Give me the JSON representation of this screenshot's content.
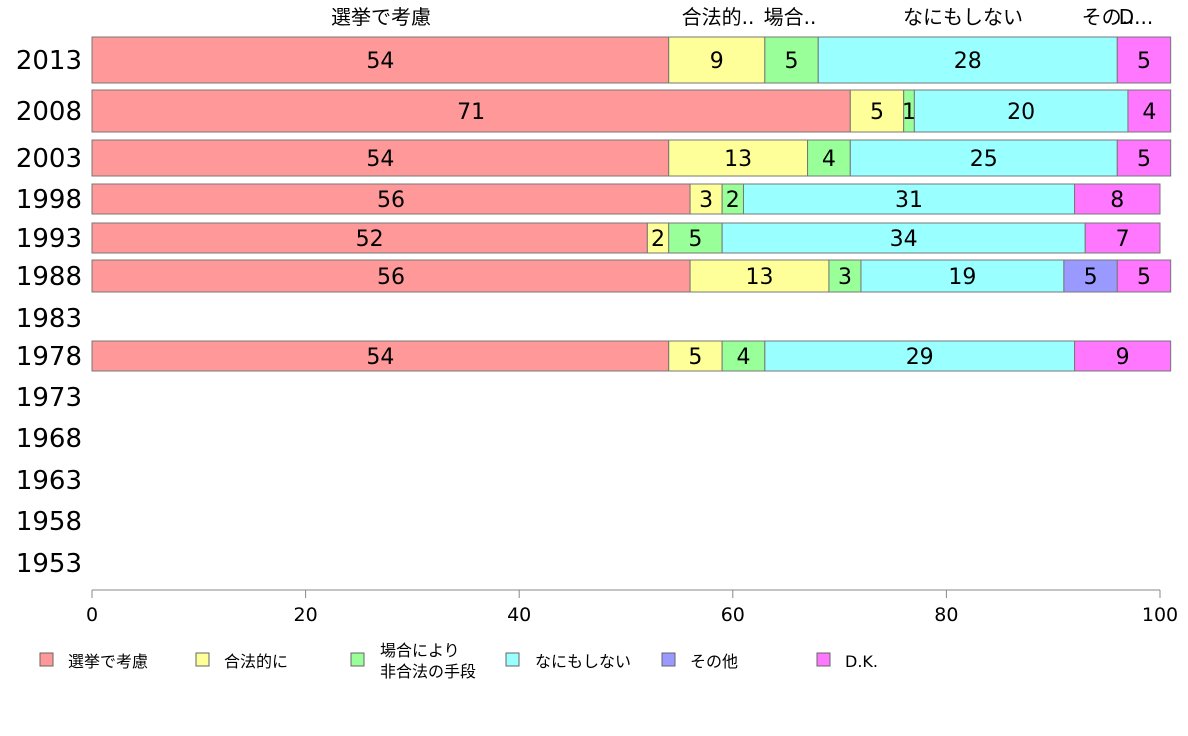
{
  "chart_data": {
    "type": "bar",
    "orientation": "horizontal",
    "stacked": true,
    "categories": [
      "2013",
      "2008",
      "2003",
      "1998",
      "1993",
      "1988",
      "1983",
      "1978",
      "1973",
      "1968",
      "1963",
      "1958",
      "1953"
    ],
    "series": [
      {
        "name": "選挙で考慮",
        "color": "#ff9999",
        "values": [
          54,
          71,
          54,
          56,
          52,
          56,
          null,
          54,
          null,
          null,
          null,
          null,
          null
        ]
      },
      {
        "name": "合法的に",
        "color": "#ffff99",
        "values": [
          9,
          5,
          13,
          3,
          2,
          13,
          null,
          5,
          null,
          null,
          null,
          null,
          null
        ]
      },
      {
        "name": "場合により 非合法の手段",
        "color": "#99ff99",
        "values": [
          5,
          1,
          4,
          2,
          5,
          3,
          null,
          4,
          null,
          null,
          null,
          null,
          null
        ]
      },
      {
        "name": "なにもしない",
        "color": "#99ffff",
        "values": [
          28,
          20,
          25,
          31,
          34,
          19,
          null,
          29,
          null,
          null,
          null,
          null,
          null
        ]
      },
      {
        "name": "その他",
        "color": "#9999ff",
        "values": [
          0,
          0,
          0,
          0,
          0,
          5,
          null,
          0,
          null,
          null,
          null,
          null,
          null
        ]
      },
      {
        "name": "D.K.",
        "color": "#ff77ff",
        "values": [
          5,
          4,
          5,
          8,
          7,
          5,
          null,
          9,
          null,
          null,
          null,
          null,
          null
        ]
      }
    ],
    "top_labels": [
      "選挙で考慮",
      "合法的..",
      "場合..",
      "なにもしない",
      "その..",
      "D..."
    ],
    "x_ticks": [
      "0",
      "20",
      "40",
      "60",
      "80",
      "100"
    ],
    "xlim": [
      0,
      100
    ],
    "legend_labels": [
      "選挙で考慮",
      "合法的に",
      "場合により",
      "非合法の手段",
      "なにもしない",
      "その他",
      "D.K."
    ],
    "legend_position": "bottom",
    "grid": false
  }
}
